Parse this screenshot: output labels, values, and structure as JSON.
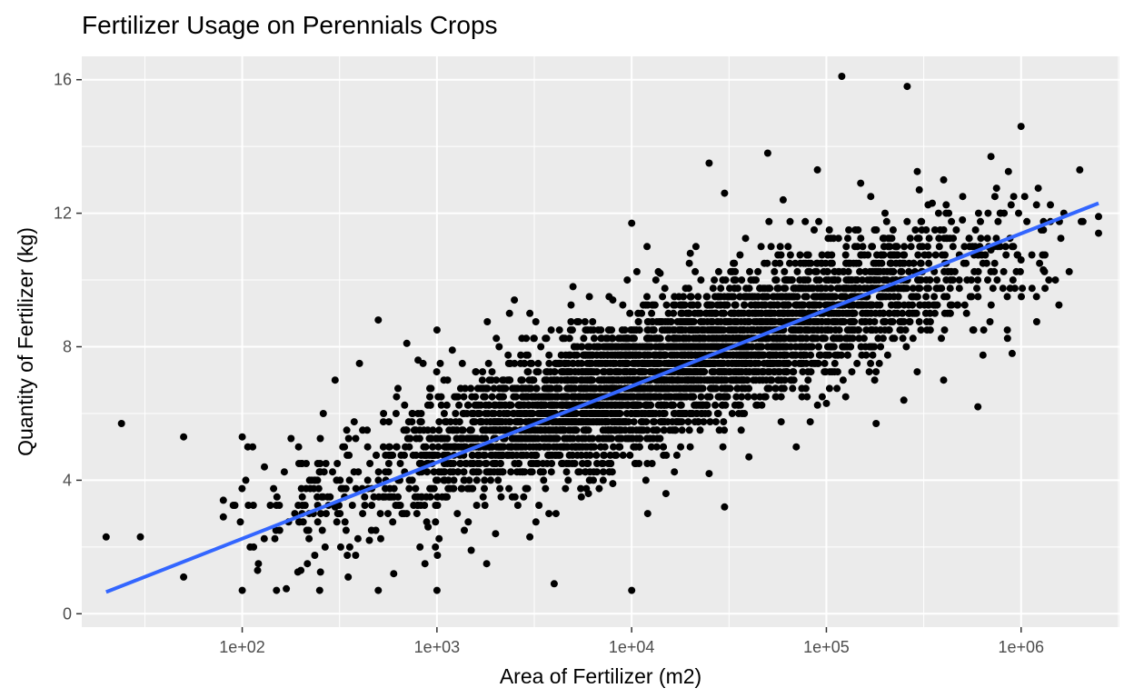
{
  "chart_data": {
    "type": "scatter",
    "title": "Fertilizer Usage on Perennials Crops",
    "xlabel": "Area of Fertilizer (m2)",
    "ylabel": "Quantity of Fertilizer (kg)",
    "x_scale": "log10",
    "xlim": [
      15,
      3200000
    ],
    "ylim": [
      -0.4,
      16.7
    ],
    "x_ticks": [
      100,
      1000,
      10000,
      100000,
      1000000
    ],
    "x_tick_labels": [
      "1e+02",
      "1e+03",
      "1e+04",
      "1e+05",
      "1e+06"
    ],
    "y_ticks": [
      0,
      4,
      8,
      12,
      16
    ],
    "y_tick_labels": [
      "0",
      "4",
      "8",
      "12",
      "16"
    ],
    "grid": true,
    "panel_background": "#ebebeb",
    "grid_color": "#ffffff",
    "point_color": "#000000",
    "trend_color": "#3366ff",
    "trend_line": {
      "method": "linear fit (log10 x)",
      "x": [
        20,
        2500000
      ],
      "y": [
        0.65,
        12.3
      ]
    },
    "n_cluster_points": 4200,
    "cluster_model": {
      "y_at_x": "2.1 * log10(x) - 1.5",
      "y_spread": 1.05,
      "log10x_center": 4.2,
      "log10x_spread": 0.8
    },
    "series": [
      {
        "values_note": "individual outlying points read from the plot",
        "points": [
          [
            20,
            2.3
          ],
          [
            24,
            5.7
          ],
          [
            30,
            2.3
          ],
          [
            50,
            5.3
          ],
          [
            50,
            1.1
          ],
          [
            100,
            0.7
          ],
          [
            100,
            5.3
          ],
          [
            150,
            0.7
          ],
          [
            250,
            0.7
          ],
          [
            500,
            0.7
          ],
          [
            500,
            8.8
          ],
          [
            1000,
            8.5
          ],
          [
            1000,
            0.7
          ],
          [
            2500,
            9.4
          ],
          [
            4000,
            0.9
          ],
          [
            10000,
            0.7
          ],
          [
            10000,
            11.7
          ],
          [
            14000,
            10.2
          ],
          [
            25000,
            13.5
          ],
          [
            30000,
            12.6
          ],
          [
            120000,
            16.1
          ],
          [
            260000,
            15.8
          ],
          [
            1000000,
            14.6
          ],
          [
            2000000,
            13.3
          ],
          [
            2500000,
            11.9
          ],
          [
            2500000,
            11.4
          ],
          [
            600000,
            6.2
          ],
          [
            180000,
            5.7
          ],
          [
            30000,
            3.2
          ],
          [
            50000,
            13.8
          ],
          [
            700000,
            13.7
          ],
          [
            850000,
            8.5
          ],
          [
            1300000,
            10.3
          ],
          [
            1500000,
            10.0
          ],
          [
            300000,
            12.7
          ],
          [
            200000,
            12.0
          ],
          [
            400000,
            13.0
          ],
          [
            90000,
            13.3
          ],
          [
            12000,
            11.0
          ],
          [
            8000,
            9.4
          ],
          [
            6000,
            3.6
          ],
          [
            2000,
            2.4
          ],
          [
            1500,
            1.9
          ],
          [
            600,
            1.2
          ],
          [
            350,
            1.1
          ],
          [
            200,
            1.3
          ],
          [
            120,
            1.3
          ],
          [
            80,
            3.4
          ],
          [
            80,
            2.9
          ],
          [
            130,
            4.4
          ],
          [
            300,
            7.0
          ],
          [
            400,
            7.5
          ],
          [
            700,
            8.1
          ],
          [
            800,
            7.6
          ],
          [
            1200,
            7.9
          ],
          [
            3000,
            9.0
          ],
          [
            5000,
            9.8
          ],
          [
            20000,
            10.8
          ],
          [
            60000,
            12.4
          ],
          [
            150000,
            12.9
          ],
          [
            350000,
            12.3
          ],
          [
            500000,
            11.8
          ],
          [
            700000,
            10.9
          ],
          [
            1000000,
            10.6
          ],
          [
            1200000,
            9.5
          ],
          [
            900000,
            7.8
          ],
          [
            400000,
            7.0
          ],
          [
            250000,
            6.4
          ],
          [
            100000,
            6.3
          ],
          [
            70000,
            5.0
          ],
          [
            40000,
            4.7
          ],
          [
            25000,
            4.2
          ],
          [
            15000,
            3.6
          ],
          [
            8000,
            3.9
          ],
          [
            3000,
            2.3
          ],
          [
            1800,
            1.5
          ],
          [
            900,
            2.6
          ],
          [
            700,
            3.0
          ],
          [
            450,
            2.2
          ],
          [
            300,
            3.2
          ]
        ]
      }
    ]
  }
}
